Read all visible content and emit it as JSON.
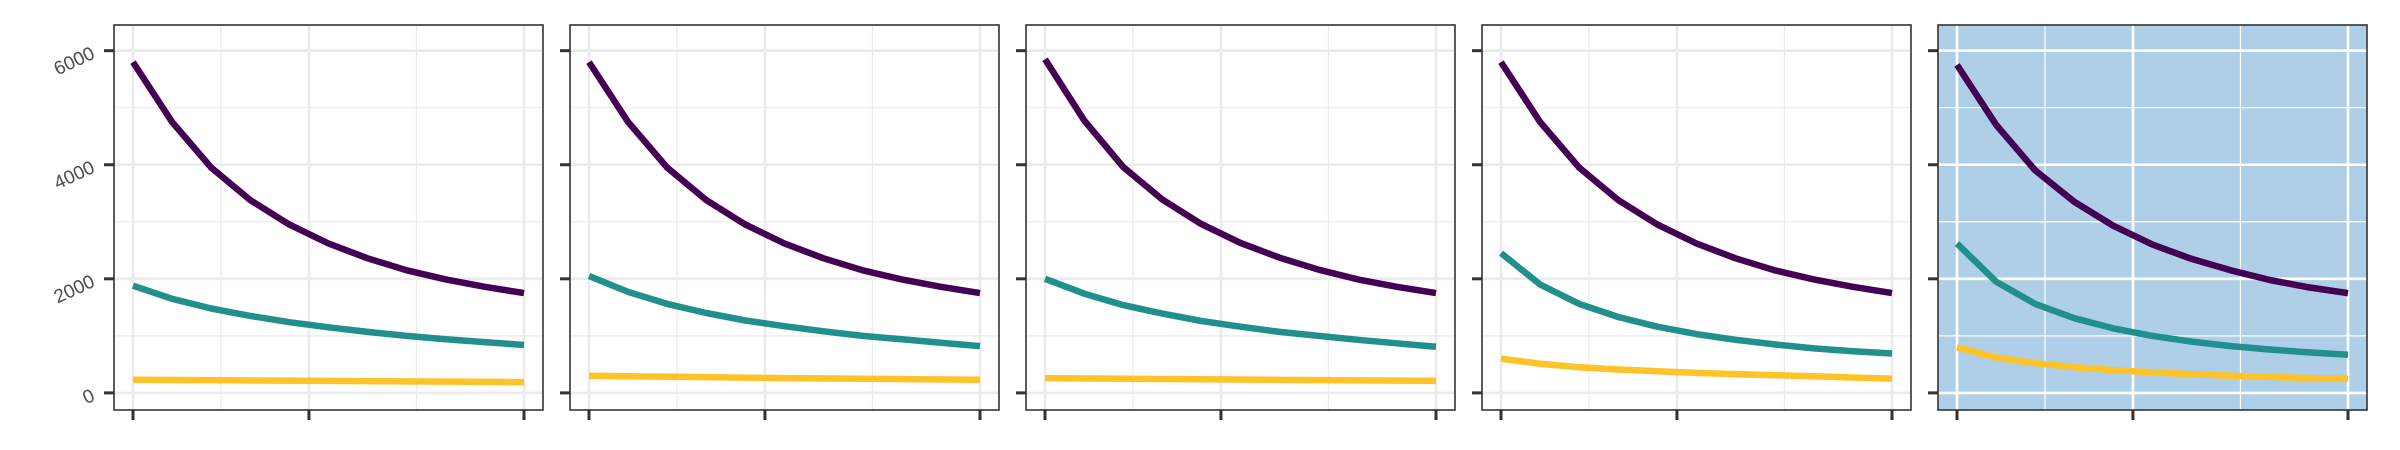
{
  "chart_data": {
    "type": "line",
    "title": "",
    "xlabel": "",
    "ylabel": "",
    "ylim": [
      -300,
      6450
    ],
    "y_ticks": [
      0,
      2000,
      4000,
      6000
    ],
    "y_tick_labels": [
      "0",
      "2000",
      "4000",
      "6000"
    ],
    "x_range": [
      0,
      1
    ],
    "x_ticks": [
      0,
      0.45,
      1
    ],
    "grid": true,
    "legend": "none",
    "panels": [
      {
        "highlighted": false,
        "background": "#ffffff",
        "series": [
          {
            "color": "#440154",
            "x": [
              0,
              0.1,
              0.2,
              0.3,
              0.4,
              0.5,
              0.6,
              0.7,
              0.8,
              0.9,
              1.0
            ],
            "y": [
              5800,
              4750,
              3950,
              3380,
              2950,
              2620,
              2360,
              2150,
              1990,
              1860,
              1750
            ]
          },
          {
            "color": "#21908C",
            "x": [
              0,
              0.1,
              0.2,
              0.3,
              0.4,
              0.5,
              0.6,
              0.7,
              0.8,
              0.9,
              1.0
            ],
            "y": [
              1880,
              1650,
              1480,
              1350,
              1240,
              1150,
              1070,
              1000,
              940,
              890,
              840
            ]
          },
          {
            "color": "#FDC328",
            "x": [
              0,
              0.25,
              0.5,
              0.75,
              1.0
            ],
            "y": [
              230,
              220,
              210,
              200,
              190
            ]
          }
        ]
      },
      {
        "highlighted": false,
        "background": "#ffffff",
        "series": [
          {
            "color": "#440154",
            "x": [
              0,
              0.1,
              0.2,
              0.3,
              0.4,
              0.5,
              0.6,
              0.7,
              0.8,
              0.9,
              1.0
            ],
            "y": [
              5800,
              4750,
              3950,
              3380,
              2950,
              2620,
              2360,
              2150,
              1990,
              1860,
              1750
            ]
          },
          {
            "color": "#21908C",
            "x": [
              0,
              0.1,
              0.2,
              0.3,
              0.4,
              0.5,
              0.6,
              0.7,
              0.8,
              0.9,
              1.0
            ],
            "y": [
              2050,
              1770,
              1560,
              1400,
              1270,
              1170,
              1080,
              1000,
              940,
              880,
              820
            ]
          },
          {
            "color": "#FDC328",
            "x": [
              0,
              0.25,
              0.5,
              0.75,
              1.0
            ],
            "y": [
              300,
              280,
              260,
              245,
              230
            ]
          }
        ]
      },
      {
        "highlighted": false,
        "background": "#ffffff",
        "series": [
          {
            "color": "#440154",
            "x": [
              0,
              0.1,
              0.2,
              0.3,
              0.4,
              0.5,
              0.6,
              0.7,
              0.8,
              0.9,
              1.0
            ],
            "y": [
              5850,
              4780,
              3960,
              3390,
              2960,
              2630,
              2370,
              2160,
              1990,
              1860,
              1750
            ]
          },
          {
            "color": "#21908C",
            "x": [
              0,
              0.1,
              0.2,
              0.3,
              0.4,
              0.5,
              0.6,
              0.7,
              0.8,
              0.9,
              1.0
            ],
            "y": [
              2000,
              1740,
              1540,
              1390,
              1260,
              1160,
              1070,
              1000,
              930,
              870,
              810
            ]
          },
          {
            "color": "#FDC328",
            "x": [
              0,
              0.25,
              0.5,
              0.75,
              1.0
            ],
            "y": [
              260,
              245,
              235,
              220,
              210
            ]
          }
        ]
      },
      {
        "highlighted": false,
        "background": "#ffffff",
        "series": [
          {
            "color": "#440154",
            "x": [
              0,
              0.1,
              0.2,
              0.3,
              0.4,
              0.5,
              0.6,
              0.7,
              0.8,
              0.9,
              1.0
            ],
            "y": [
              5800,
              4750,
              3950,
              3380,
              2950,
              2620,
              2360,
              2150,
              1990,
              1860,
              1750
            ]
          },
          {
            "color": "#21908C",
            "x": [
              0,
              0.1,
              0.2,
              0.3,
              0.4,
              0.5,
              0.6,
              0.7,
              0.8,
              0.9,
              1.0
            ],
            "y": [
              2450,
              1900,
              1560,
              1330,
              1160,
              1030,
              930,
              850,
              780,
              730,
              690
            ]
          },
          {
            "color": "#FDC328",
            "x": [
              0,
              0.1,
              0.2,
              0.3,
              0.4,
              0.5,
              0.6,
              0.7,
              0.8,
              0.9,
              1.0
            ],
            "y": [
              600,
              510,
              450,
              410,
              380,
              350,
              330,
              310,
              290,
              270,
              250
            ]
          }
        ]
      },
      {
        "highlighted": true,
        "background": "#aecfe7",
        "series": [
          {
            "color": "#440154",
            "x": [
              0,
              0.1,
              0.2,
              0.3,
              0.4,
              0.5,
              0.6,
              0.7,
              0.8,
              0.9,
              1.0
            ],
            "y": [
              5750,
              4700,
              3900,
              3350,
              2930,
              2600,
              2350,
              2150,
              1980,
              1850,
              1750
            ]
          },
          {
            "color": "#21908C",
            "x": [
              0,
              0.1,
              0.2,
              0.3,
              0.4,
              0.5,
              0.6,
              0.7,
              0.8,
              0.9,
              1.0
            ],
            "y": [
              2620,
              1950,
              1560,
              1310,
              1130,
              1000,
              900,
              820,
              760,
              710,
              670
            ]
          },
          {
            "color": "#FDC328",
            "x": [
              0,
              0.1,
              0.2,
              0.3,
              0.4,
              0.5,
              0.6,
              0.7,
              0.8,
              0.9,
              1.0
            ],
            "y": [
              800,
              620,
              520,
              450,
              400,
              360,
              330,
              300,
              280,
              260,
              250
            ]
          }
        ]
      }
    ]
  }
}
